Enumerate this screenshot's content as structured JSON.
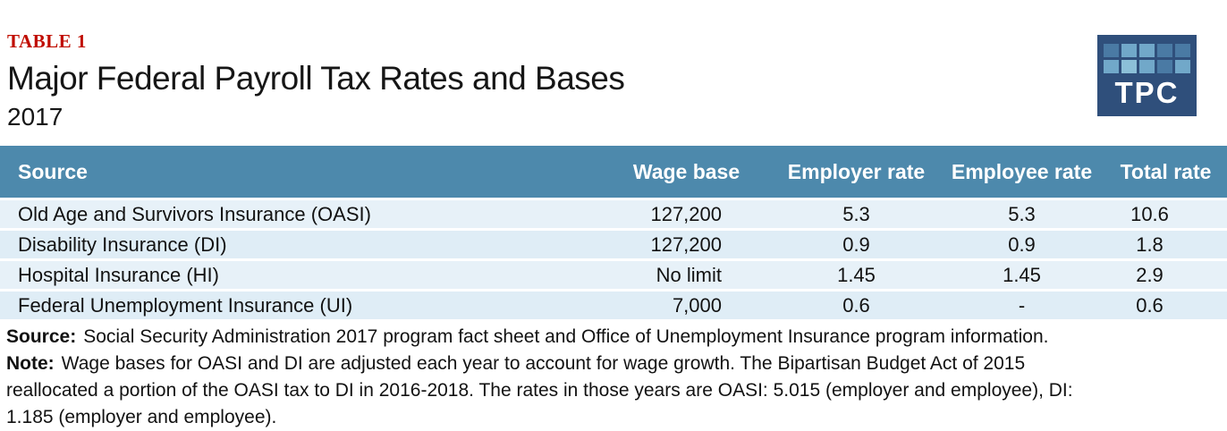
{
  "header": {
    "eyebrow": "TABLE 1",
    "eyebrow_color": "#c00d00",
    "title": "Major Federal Payroll Tax Rates and Bases",
    "subtitle": "2017"
  },
  "logo": {
    "text": "TPC",
    "background": "#2f4f7b",
    "squares": [
      "#4a7aa4",
      "#71a8c9",
      "#71a8c9",
      "#4a7aa4",
      "#4a7aa4",
      "#71a8c9",
      "#8cc0d8",
      "#71a8c9",
      "#4a7aa4",
      "#71a8c9"
    ]
  },
  "table": {
    "header_bg": "#4d89ac",
    "row_bg_odd": "#e7f1f8",
    "row_bg_even": "#dfedf6",
    "headers": [
      "Source",
      "Wage base",
      "Employer rate",
      "Employee rate",
      "Total rate"
    ],
    "rows": [
      {
        "cells": [
          "Old Age and Survivors Insurance (OASI)",
          "127,200",
          "5.3",
          "5.3",
          "10.6"
        ]
      },
      {
        "cells": [
          "Disability Insurance (DI)",
          "127,200",
          "0.9",
          "0.9",
          "1.8"
        ]
      },
      {
        "cells": [
          "Hospital Insurance (HI)",
          "No limit",
          "1.45",
          "1.45",
          "2.9"
        ]
      },
      {
        "cells": [
          "Federal Unemployment Insurance (UI)",
          "7,000",
          "0.6",
          "-",
          "0.6"
        ]
      }
    ]
  },
  "chart_data": {
    "type": "table",
    "title": "Major Federal Payroll Tax Rates and Bases",
    "subtitle": "2017",
    "columns": [
      "Source",
      "Wage base",
      "Employer rate",
      "Employee rate",
      "Total rate"
    ],
    "rows": [
      [
        "Old Age and Survivors Insurance (OASI)",
        "127,200",
        5.3,
        5.3,
        10.6
      ],
      [
        "Disability Insurance (DI)",
        "127,200",
        0.9,
        0.9,
        1.8
      ],
      [
        "Hospital Insurance (HI)",
        "No limit",
        1.45,
        1.45,
        2.9
      ],
      [
        "Federal Unemployment Insurance (UI)",
        "7,000",
        0.6,
        null,
        0.6
      ]
    ]
  },
  "notes": {
    "source_label": "Source:",
    "source_text": "Social Security Administration 2017 program fact sheet and Office of Unemployment Insurance program information.",
    "note_label": "Note:",
    "note_line1": "Wage bases for OASI and DI are adjusted each year to account for wage growth. The Bipartisan Budget Act of 2015",
    "note_line2": "reallocated a portion of the OASI tax to DI in 2016-2018. The rates in those years are OASI: 5.015 (employer and employee), DI:",
    "note_line3": "1.185 (employer and employee)."
  }
}
